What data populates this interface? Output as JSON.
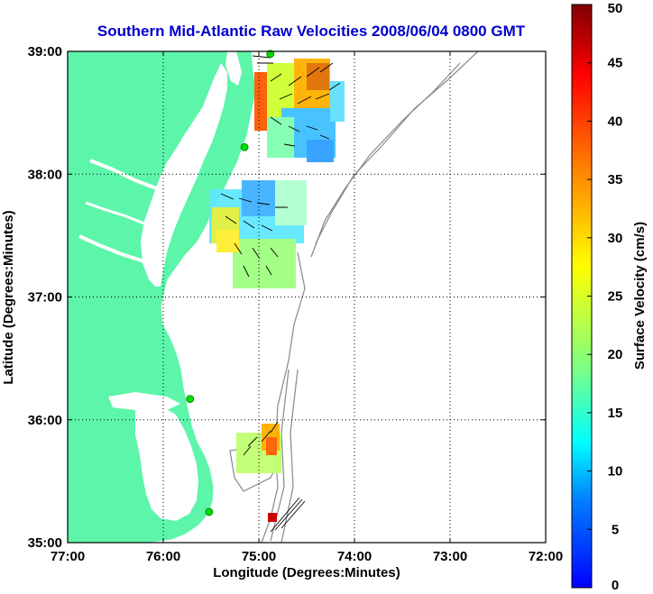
{
  "title": "Southern Mid-Atlantic Raw Velocities 2008/06/04 0800 GMT",
  "x_axis": {
    "label": "Longitude (Degrees:Minutes)",
    "range": [
      -77,
      -72
    ],
    "ticks": [
      {
        "value": -77,
        "label": "77:00"
      },
      {
        "value": -76,
        "label": "76:00"
      },
      {
        "value": -75,
        "label": "75:00"
      },
      {
        "value": -74,
        "label": "74:00"
      },
      {
        "value": -73,
        "label": "73:00"
      },
      {
        "value": -72,
        "label": "72:00"
      }
    ]
  },
  "y_axis": {
    "label": "Latitude (Degrees:Minutes)",
    "range": [
      35,
      39
    ],
    "ticks": [
      {
        "value": 39,
        "label": "39:00"
      },
      {
        "value": 38,
        "label": "38:00"
      },
      {
        "value": 37,
        "label": "37:00"
      },
      {
        "value": 36,
        "label": "36:00"
      },
      {
        "value": 35,
        "label": "35:00"
      }
    ]
  },
  "grid": true,
  "colorbar": {
    "label": "Surface Velocity (cm/s)",
    "range": [
      0,
      50
    ],
    "ticks": [
      {
        "value": 50,
        "label": "50"
      },
      {
        "value": 45,
        "label": "45"
      },
      {
        "value": 40,
        "label": "40"
      },
      {
        "value": 35,
        "label": "35"
      },
      {
        "value": 30,
        "label": "30"
      },
      {
        "value": 25,
        "label": "25"
      },
      {
        "value": 20,
        "label": "20"
      },
      {
        "value": 15,
        "label": "15"
      },
      {
        "value": 10,
        "label": "10"
      },
      {
        "value": 5,
        "label": "5"
      },
      {
        "value": 0,
        "label": "0"
      }
    ],
    "colors": [
      "#0000ff",
      "#0080ff",
      "#00ffff",
      "#80ff80",
      "#ffff00",
      "#ff8000",
      "#ff0000",
      "#800000"
    ]
  },
  "colors": {
    "land": "#5cf5aa",
    "water": "#ffffff",
    "bathymetry": "#888888",
    "stations": "#00dd00",
    "reference_cell": "#cc0000"
  },
  "stations": [
    {
      "lon": -74.88,
      "lat": 38.98
    },
    {
      "lon": -75.15,
      "lat": 38.22
    },
    {
      "lon": -75.72,
      "lat": 36.17
    },
    {
      "lon": -75.52,
      "lat": 35.25
    }
  ]
}
